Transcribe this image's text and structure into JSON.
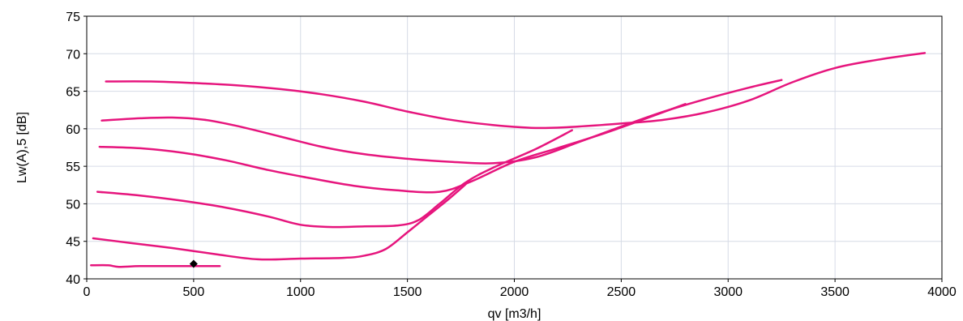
{
  "chart_data": {
    "type": "line",
    "title": "",
    "xlabel": "qv [m3/h]",
    "ylabel": "Lw(A),5 [dB]",
    "xlim": [
      0,
      4000
    ],
    "ylim": [
      40,
      75
    ],
    "xticks": [
      0,
      500,
      1000,
      1500,
      2000,
      2500,
      3000,
      3500,
      4000
    ],
    "yticks": [
      40,
      45,
      50,
      55,
      60,
      65,
      70,
      75
    ],
    "grid": true,
    "legend": "none",
    "series_color": "#e6157d",
    "marker_color": "#000000",
    "series": [
      {
        "x": [
          90,
          300,
          500,
          700,
          900,
          1100,
          1300,
          1500,
          1700,
          1900,
          2100,
          2300,
          2500,
          2700,
          2900,
          3100,
          3300,
          3500,
          3700,
          3920
        ],
        "y": [
          66.3,
          66.3,
          66.1,
          65.8,
          65.3,
          64.6,
          63.6,
          62.3,
          61.2,
          60.5,
          60.1,
          60.3,
          60.7,
          61.2,
          62.2,
          63.8,
          66.2,
          68.1,
          69.2,
          70.1
        ]
      },
      {
        "x": [
          70,
          250,
          400,
          550,
          700,
          900,
          1100,
          1300,
          1500,
          1700,
          1900,
          2100,
          2300,
          2500,
          2700,
          2900,
          3100,
          3250
        ],
        "y": [
          61.1,
          61.4,
          61.5,
          61.2,
          60.4,
          59.0,
          57.6,
          56.6,
          56.0,
          55.6,
          55.4,
          56.2,
          58.2,
          60.3,
          62.3,
          64.0,
          65.5,
          66.5
        ]
      },
      {
        "x": [
          60,
          250,
          450,
          650,
          850,
          1050,
          1250,
          1450,
          1650,
          1800,
          2000,
          2200,
          2400,
          2600,
          2800
        ],
        "y": [
          57.6,
          57.4,
          56.8,
          55.8,
          54.5,
          53.4,
          52.4,
          51.8,
          51.6,
          53.0,
          55.6,
          57.4,
          59.2,
          61.2,
          63.3
        ]
      },
      {
        "x": [
          50,
          250,
          450,
          650,
          850,
          1000,
          1150,
          1300,
          1450,
          1550,
          1650,
          1770,
          1900,
          2100,
          2270
        ],
        "y": [
          51.6,
          51.1,
          50.4,
          49.5,
          48.3,
          47.2,
          46.9,
          47.0,
          47.1,
          47.8,
          50.0,
          52.8,
          54.8,
          57.3,
          59.8
        ]
      },
      {
        "x": [
          30,
          200,
          400,
          600,
          800,
          1000,
          1200,
          1300,
          1400,
          1500,
          1600,
          1700,
          1780
        ],
        "y": [
          45.4,
          44.8,
          44.1,
          43.3,
          42.6,
          42.7,
          42.8,
          43.1,
          44.0,
          46.2,
          48.5,
          50.8,
          52.8
        ]
      },
      {
        "x": [
          20,
          100,
          150,
          250,
          400,
          600,
          620
        ],
        "y": [
          41.8,
          41.8,
          41.6,
          41.7,
          41.7,
          41.7,
          41.7
        ]
      }
    ],
    "markers": [
      {
        "x": 500,
        "y": 42.0
      }
    ]
  }
}
